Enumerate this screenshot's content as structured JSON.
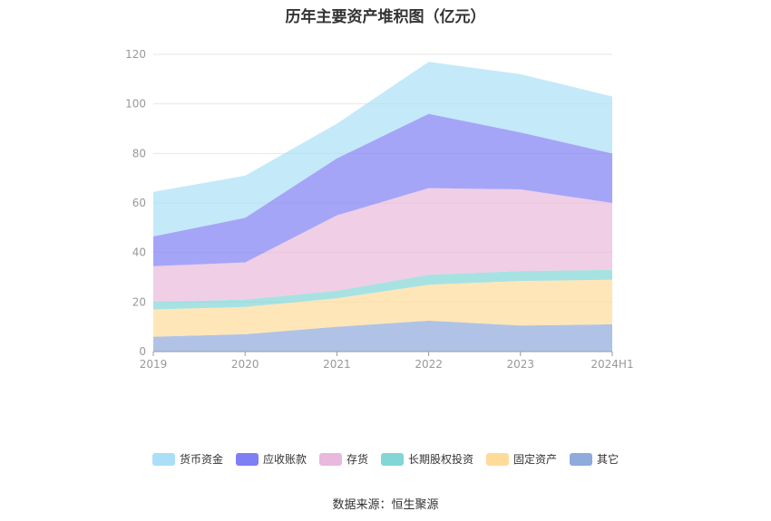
{
  "title": "历年主要资产堆积图（亿元）",
  "source": "数据来源：恒生聚源",
  "chart_data": {
    "type": "area",
    "stacked": true,
    "categories": [
      "2019",
      "2020",
      "2021",
      "2022",
      "2023",
      "2024H1"
    ],
    "ylim": [
      0,
      120
    ],
    "yticks": [
      0,
      20,
      40,
      60,
      80,
      100,
      120
    ],
    "grid": true,
    "legend_position": "bottom",
    "series": [
      {
        "name": "其它",
        "color": "#8faadc",
        "values": [
          6,
          7,
          10,
          12.5,
          10.5,
          11
        ]
      },
      {
        "name": "固定资产",
        "color": "#ffdb9a",
        "values": [
          11,
          11,
          11.5,
          14.5,
          18,
          18
        ]
      },
      {
        "name": "长期股权投资",
        "color": "#82d6d6",
        "values": [
          3,
          3,
          3,
          4,
          4,
          4
        ]
      },
      {
        "name": "存货",
        "color": "#e8b9dc",
        "values": [
          14.5,
          15,
          30.5,
          35,
          33,
          27
        ]
      },
      {
        "name": "应收账款",
        "color": "#7f7ff5",
        "values": [
          12,
          18,
          23,
          30,
          23,
          20
        ]
      },
      {
        "name": "货币资金",
        "color": "#abdff7",
        "values": [
          18,
          17,
          14,
          21,
          23.5,
          23
        ]
      }
    ],
    "legend_order": [
      "货币资金",
      "应收账款",
      "存货",
      "长期股权投资",
      "固定资产",
      "其它"
    ]
  }
}
